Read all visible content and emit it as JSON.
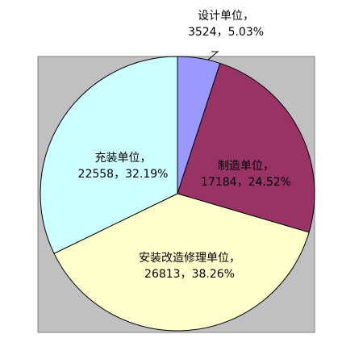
{
  "chart_data": {
    "type": "pie",
    "categories": [
      "设计单位",
      "制造单位",
      "安装改造修理单位",
      "充装单位"
    ],
    "values": [
      3524,
      17184,
      26813,
      22558
    ],
    "percent_labels": [
      "5.03%",
      "24.52%",
      "38.26%",
      "32.19%"
    ],
    "separator": "，",
    "colors": [
      "#9999ff",
      "#993366",
      "#ffffcc",
      "#ccffff"
    ],
    "plot_background": "#c0c0c0"
  }
}
